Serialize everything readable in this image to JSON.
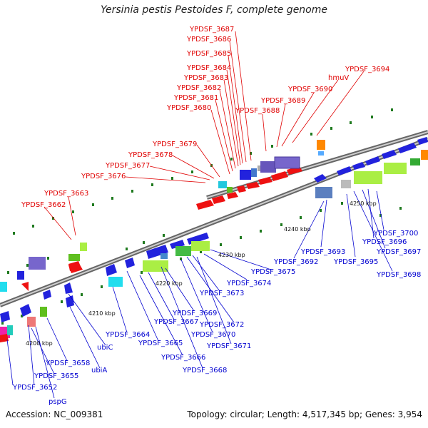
{
  "title": "Yersinia pestis Pestoides F, complete genome",
  "footer": {
    "accession": "Accession: NC_009381",
    "summary": "Topology: circular; Length: 4,517,345 bp; Genes: 3,954"
  },
  "kbp_labels": [
    "4200 kbp",
    "4210 kbp",
    "4220 kbp",
    "4230 kbp",
    "4240 kbp",
    "4250 kbp"
  ],
  "labels_top": [
    "YPDSF_3687",
    "YPDSF_3686",
    "YPDSF_3685",
    "YPDSF_3684",
    "YPDSF_3683",
    "YPDSF_3682",
    "YPDSF_3681",
    "YPDSF_3680",
    "YPDSF_3688",
    "YPDSF_3689",
    "YPDSF_3690",
    "hmuV",
    "YPDSF_3694",
    "YPDSF_3679",
    "YPDSF_3678",
    "YPDSF_3677",
    "YPDSF_3676",
    "YPDSF_3663",
    "YPDSF_3662"
  ],
  "labels_bottom": [
    "YPDSF_3700",
    "YPDSF_3696",
    "YPDSF_3697",
    "YPDSF_3698",
    "YPDSF_3693",
    "YPDSF_3695",
    "YPDSF_3692",
    "YPDSF_3675",
    "YPDSF_3674",
    "YPDSF_3673",
    "YPDSF_3669",
    "YPDSF_3672",
    "YPDSF_3670",
    "YPDSF_3671",
    "YPDSF_3667",
    "YPDSF_3664",
    "YPDSF_3665",
    "YPDSF_3666",
    "YPDSF_3668",
    "ubiC",
    "ubiA",
    "YPDSF_3658",
    "YPDSF_3655",
    "YPDSF_3652",
    "pspG"
  ],
  "colors": {
    "label_top": "#e00000",
    "label_bottom": "#0000d0",
    "backbone": "#8a8a8a",
    "tick": "#1f7a1f"
  }
}
